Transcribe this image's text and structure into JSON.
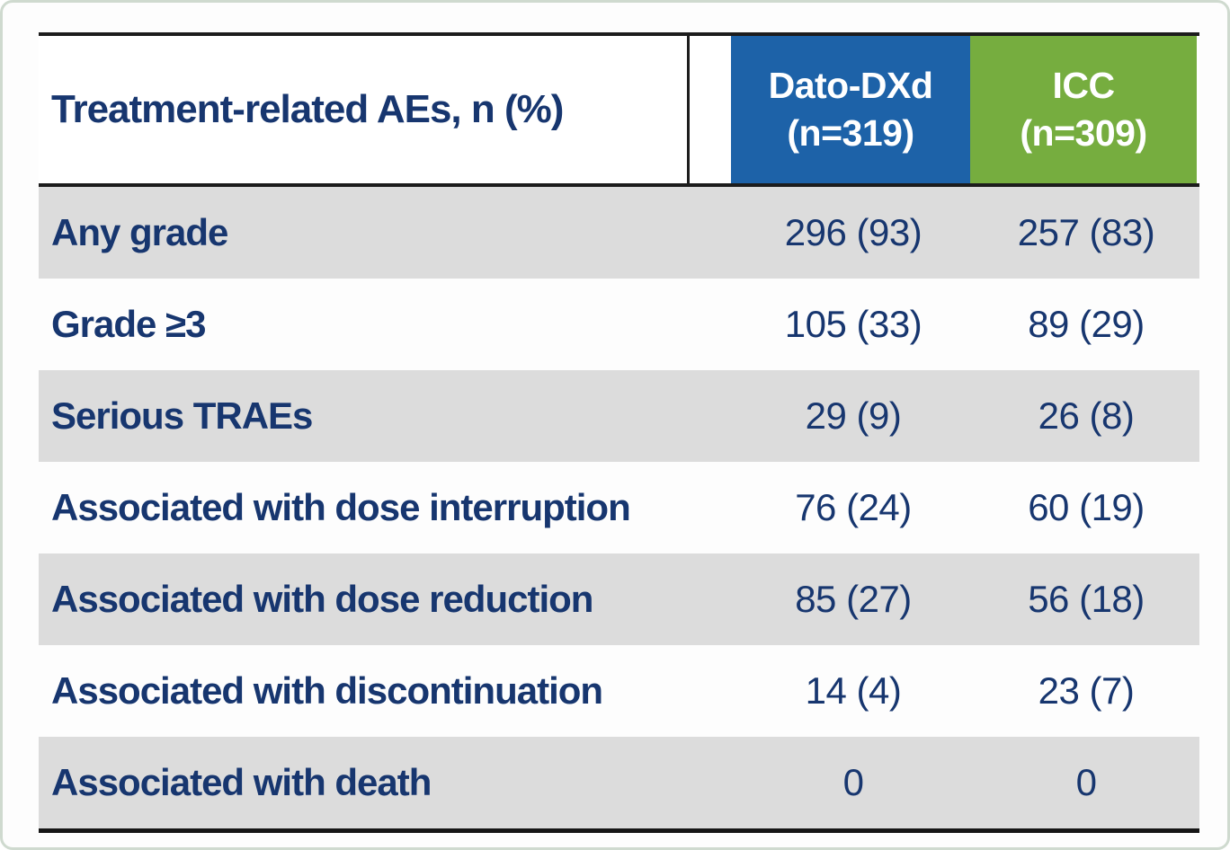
{
  "table": {
    "title_cell": "Treatment-related AEs, n (%)",
    "columns": [
      {
        "name": "Dato-DXd",
        "n_label": "(n=319)",
        "color": "#1d62a8"
      },
      {
        "name": "ICC",
        "n_label": "(n=309)",
        "color": "#76ad3f"
      }
    ],
    "rows": [
      {
        "label": "Any grade",
        "dato": "296 (93)",
        "icc": "257 (83)"
      },
      {
        "label": "Grade ≥3",
        "dato": "105 (33)",
        "icc": "89 (29)"
      },
      {
        "label": "Serious TRAEs",
        "dato": "29 (9)",
        "icc": "26 (8)"
      },
      {
        "label": "Associated with dose interruption",
        "dato": "76 (24)",
        "icc": "60 (19)"
      },
      {
        "label": "Associated with dose reduction",
        "dato": "85 (27)",
        "icc": "56 (18)"
      },
      {
        "label": "Associated with discontinuation",
        "dato": "14 (4)",
        "icc": "23 (7)"
      },
      {
        "label": "Associated with death",
        "dato": "0",
        "icc": "0"
      }
    ],
    "colors": {
      "header_navy_text": "#17366f",
      "dato_blue": "#1d62a8",
      "icc_green": "#76ad3f",
      "row_grey": "#dcdcdc",
      "rule_black": "#1c1c1c"
    }
  }
}
